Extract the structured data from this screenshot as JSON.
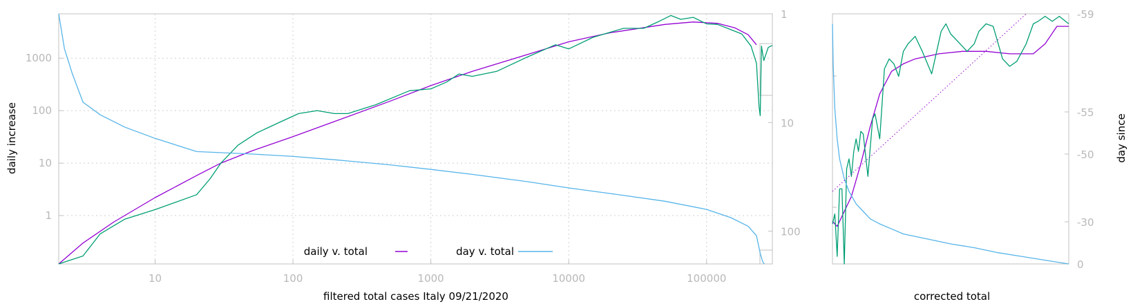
{
  "chart_data": [
    {
      "type": "line",
      "xlabel": "filtered total cases Italy 09/21/2020",
      "ylabel": "daily increase",
      "y2label": "",
      "xscale": "log",
      "yscale": "log",
      "y2scale": "log-reversed",
      "xlim": [
        2,
        300000
      ],
      "ylim": [
        0.12,
        7000
      ],
      "y2lim": [
        1,
        200
      ],
      "grid": true,
      "legend_position": "bottom-center",
      "x_ticks": [
        "10",
        "100",
        "1000",
        "10000",
        "100000"
      ],
      "y_ticks": [
        "1",
        "10",
        "100",
        "1000"
      ],
      "y2_ticks": [
        "1",
        "10",
        "100"
      ],
      "series": [
        {
          "name": "daily v. total",
          "color": "#9400d3",
          "axis": "y",
          "x": [
            2,
            3,
            5,
            10,
            20,
            30,
            50,
            100,
            200,
            500,
            1000,
            2000,
            5000,
            10000,
            20000,
            50000,
            80000,
            120000,
            160000,
            200000,
            230000
          ],
          "y": [
            0.1,
            0.3,
            0.75,
            2.2,
            5.8,
            10,
            17,
            32,
            62,
            150,
            300,
            560,
            1170,
            2050,
            3050,
            4400,
            4900,
            4600,
            3800,
            2800,
            1800
          ]
        },
        {
          "name": "",
          "color": "#009e73",
          "axis": "y",
          "x": [
            2,
            3,
            4,
            6,
            10,
            20,
            25,
            30,
            40,
            55,
            80,
            110,
            150,
            200,
            250,
            400,
            700,
            1000,
            1300,
            1600,
            2000,
            3000,
            5000,
            8000,
            10000,
            15000,
            25000,
            35000,
            45000,
            55000,
            65000,
            80000,
            100000,
            120000,
            150000,
            180000,
            210000,
            230000,
            240000,
            245000,
            250000,
            260000,
            280000,
            300000
          ],
          "y": [
            0.1,
            0.17,
            0.45,
            0.85,
            1.3,
            2.5,
            5,
            10,
            22,
            38,
            60,
            88,
            100,
            88,
            88,
            130,
            240,
            260,
            350,
            500,
            450,
            560,
            1050,
            1800,
            1500,
            2500,
            3700,
            3700,
            5000,
            6500,
            5500,
            6000,
            4500,
            4400,
            3500,
            2900,
            1700,
            800,
            120,
            80,
            1700,
            900,
            1600,
            1750
          ]
        },
        {
          "name": "day v. total",
          "color": "#56b4e9",
          "axis": "y2",
          "x": [
            2,
            2.2,
            2.5,
            3,
            4,
            6,
            10,
            20,
            50,
            100,
            200,
            500,
            1000,
            2000,
            5000,
            10000,
            20000,
            50000,
            100000,
            150000,
            200000,
            230000,
            245000,
            255000,
            262000
          ],
          "y2": [
            1,
            2.1,
            3.5,
            6.5,
            8.5,
            11,
            14,
            18.5,
            19.5,
            20.5,
            22,
            24.5,
            27,
            30,
            35,
            40,
            45,
            53,
            63,
            75,
            90,
            110,
            160,
            190,
            200
          ]
        }
      ]
    },
    {
      "type": "line",
      "xlabel": "corrected total",
      "ylabel": "",
      "y2label": "day since",
      "y2_ticks": [
        "-59",
        "-55",
        "-50",
        "-30",
        "0"
      ],
      "grid": false,
      "series": [
        {
          "name": "",
          "color": "#9400d3",
          "axis": "y",
          "x": [
            0,
            0.02,
            0.05,
            0.08,
            0.12,
            0.16,
            0.2,
            0.25,
            0.3,
            0.35,
            0.45,
            0.55,
            0.65,
            0.75,
            0.85,
            0.9,
            0.95,
            1.0
          ],
          "y": [
            0.17,
            0.15,
            0.21,
            0.27,
            0.4,
            0.55,
            0.68,
            0.77,
            0.8,
            0.82,
            0.84,
            0.85,
            0.85,
            0.84,
            0.84,
            0.88,
            0.95,
            0.95
          ]
        },
        {
          "name": "",
          "color": "#009e73",
          "axis": "y",
          "x": [
            0,
            0.01,
            0.02,
            0.03,
            0.04,
            0.05,
            0.06,
            0.07,
            0.08,
            0.09,
            0.1,
            0.11,
            0.12,
            0.13,
            0.15,
            0.17,
            0.18,
            0.2,
            0.22,
            0.24,
            0.26,
            0.28,
            0.3,
            0.32,
            0.35,
            0.38,
            0.42,
            0.46,
            0.48,
            0.5,
            0.54,
            0.57,
            0.6,
            0.62,
            0.65,
            0.68,
            0.72,
            0.75,
            0.78,
            0.82,
            0.85,
            0.87,
            0.9,
            0.93,
            0.96,
            1.0
          ],
          "y": [
            0.16,
            0.2,
            0.03,
            0.3,
            0.3,
            0.0,
            0.38,
            0.42,
            0.35,
            0.45,
            0.5,
            0.45,
            0.53,
            0.52,
            0.35,
            0.58,
            0.6,
            0.5,
            0.78,
            0.82,
            0.8,
            0.75,
            0.85,
            0.88,
            0.91,
            0.85,
            0.76,
            0.93,
            0.96,
            0.92,
            0.88,
            0.85,
            0.88,
            0.93,
            0.96,
            0.95,
            0.82,
            0.79,
            0.81,
            0.88,
            0.96,
            0.97,
            0.99,
            0.97,
            0.99,
            0.96
          ]
        },
        {
          "name": "",
          "color": "#56b4e9",
          "axis": "y",
          "x": [
            0,
            0.003,
            0.01,
            0.02,
            0.03,
            0.05,
            0.07,
            0.1,
            0.13,
            0.16,
            0.2,
            0.25,
            0.3,
            0.4,
            0.5,
            0.6,
            0.7,
            0.8,
            0.9,
            1.0
          ],
          "y": [
            0.96,
            0.8,
            0.62,
            0.5,
            0.42,
            0.34,
            0.29,
            0.24,
            0.21,
            0.18,
            0.16,
            0.14,
            0.12,
            0.1,
            0.08,
            0.065,
            0.045,
            0.03,
            0.015,
            0.0
          ]
        },
        {
          "name": "",
          "color": "#9400d3",
          "axis": "y",
          "style": "dotted",
          "x": [
            0,
            0.82
          ],
          "y": [
            0.29,
            1.0
          ]
        }
      ]
    }
  ]
}
